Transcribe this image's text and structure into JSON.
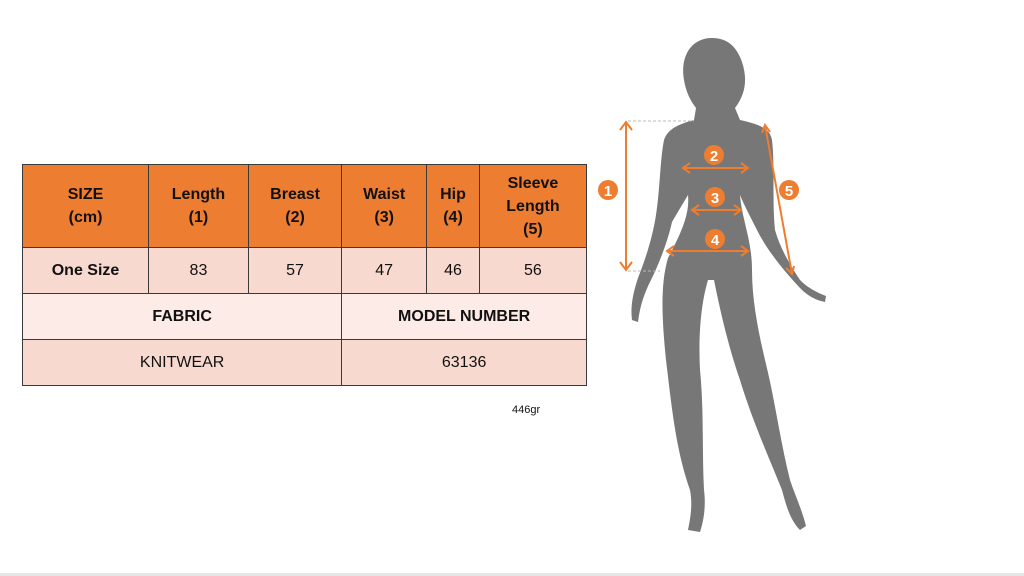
{
  "table": {
    "headers": [
      "SIZE\n(cm)",
      "Length\n(1)",
      "Breast\n(2)",
      "Waist\n(3)",
      "Hip\n(4)",
      "Sleeve\nLength\n(5)"
    ],
    "size_row": {
      "size": "One Size",
      "values": [
        "83",
        "57",
        "47",
        "46",
        "56"
      ]
    },
    "fabric_label": "FABRIC",
    "model_number_label": "MODEL NUMBER",
    "fabric_value": "KNITWEAR",
    "model_number_value": "63136"
  },
  "weight": "446gr",
  "figure": {
    "markers": [
      "1",
      "2",
      "3",
      "4",
      "5"
    ]
  },
  "colors": {
    "accent": "#ED7D31",
    "row_light": "#F8D9CF",
    "row_lighter": "#FCEBE6",
    "silhouette": "#777777"
  }
}
